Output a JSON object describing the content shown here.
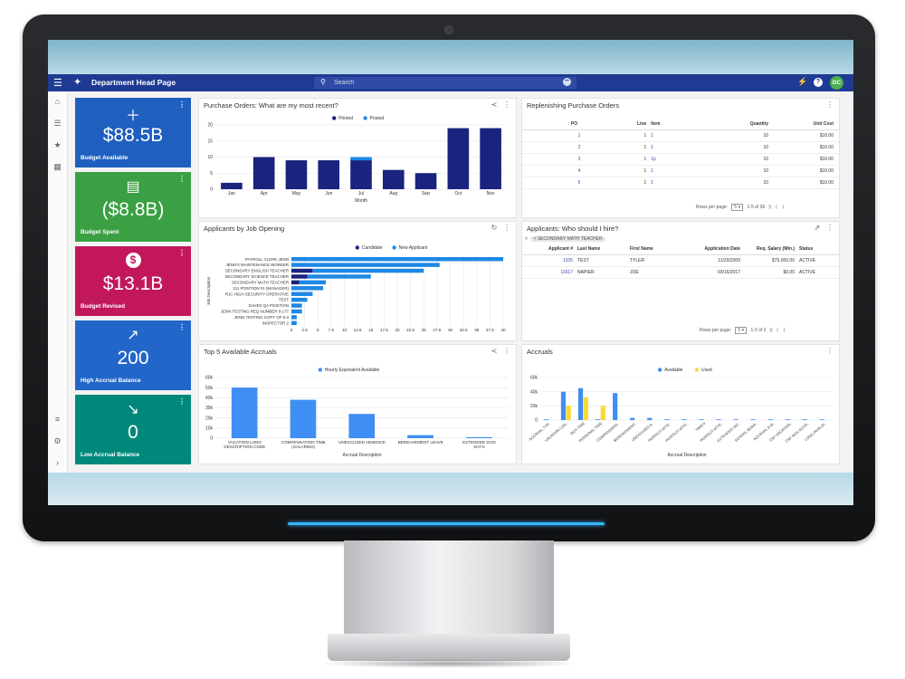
{
  "app": {
    "title": "Department Head Page",
    "search_placeholder": "Search",
    "user_initials": "DC"
  },
  "icons": {
    "menu": "hamburger-icon",
    "logo": "network-logo-icon",
    "search": "search-icon",
    "bolt": "bolt-icon",
    "help": "help-icon"
  },
  "sidenav": [
    "home-icon",
    "list-icon",
    "star-icon",
    "dashboard-icon",
    "filter-settings-icon",
    "gear-icon",
    "chevron-right-icon"
  ],
  "kpis": [
    {
      "value": "$88.5B",
      "label": "Budget Available",
      "color": "#1f5fbf",
      "icon": "plus-icon"
    },
    {
      "value": "($8.8B)",
      "label": "Budget Spent",
      "color": "#3aa043",
      "icon": "badge-card-icon"
    },
    {
      "value": "$13.1B",
      "label": "Budget Revised",
      "color": "#c2185b",
      "icon": "dollar-circle-icon"
    },
    {
      "value": "200",
      "label": "High Accrual Balance",
      "color": "#2166c8",
      "icon": "trending-up-icon"
    },
    {
      "value": "0",
      "label": "Low Accrual Balance",
      "color": "#00897b",
      "icon": "trending-down-icon"
    }
  ],
  "widgets": {
    "purchase_orders": {
      "title": "Purchase Orders: What are my most recent?"
    },
    "replenishing": {
      "title": "Replenishing Purchase Orders",
      "columns": [
        "PO",
        "Line",
        "Item",
        "Quantity",
        "Unit Cost"
      ],
      "rows": [
        [
          "1",
          "1",
          "1",
          "10",
          "$10.00"
        ],
        [
          "2",
          "1",
          "1",
          "10",
          "$10.00"
        ],
        [
          "3",
          "1",
          "1p",
          "10",
          "$10.00"
        ],
        [
          "4",
          "1",
          "1",
          "10",
          "$10.00"
        ],
        [
          "5",
          "1",
          "1",
          "10",
          "$10.00"
        ]
      ],
      "rows_per_page_label": "Rows per page:",
      "rows_per_page": "5",
      "range": "1-5 of 36"
    },
    "applicants_job": {
      "title": "Applicants by Job Opening"
    },
    "applicants_hire": {
      "title": "Applicants: Who should I hire?",
      "filter_chip": "SECONDARY MATH TEACHER",
      "columns": [
        "Applicant #",
        "Last Name",
        "First Name",
        "Application Date",
        "Req. Salary (Min.)",
        "Status"
      ],
      "rows": [
        [
          "1105",
          "TEST",
          "TYLER",
          "11/20/2009",
          "$75,000.00",
          "ACTIVE"
        ],
        [
          "11617",
          "NAPIER",
          "JOE",
          "03/16/2017",
          "$0.00",
          "ACTIVE"
        ]
      ],
      "rows_per_page_label": "Rows per page:",
      "rows_per_page": "5",
      "range": "1-2 of 2"
    },
    "top_accruals": {
      "title": "Top 5 Available Accruals"
    },
    "accruals": {
      "title": "Accruals"
    }
  },
  "chart_data": [
    {
      "type": "bar",
      "id": "po",
      "categories": [
        "Jan",
        "Apr",
        "May",
        "Jun",
        "Jul",
        "Aug",
        "Sep",
        "Oct",
        "Nov"
      ],
      "series": [
        {
          "name": "Printed",
          "color": "#1a237e",
          "values": [
            2,
            10,
            9,
            9,
            9,
            6,
            5,
            19,
            19
          ]
        },
        {
          "name": "Posted",
          "color": "#1e88e5",
          "values": [
            0,
            0,
            0,
            0,
            1,
            0,
            0,
            0,
            0
          ]
        }
      ],
      "xlabel": "Month",
      "ylabel": "",
      "ylim": [
        0,
        20
      ],
      "yticks": [
        0,
        5,
        10,
        15,
        20
      ],
      "legend": "top"
    },
    {
      "type": "bar",
      "id": "jobs",
      "orientation": "horizontal",
      "categories": [
        "PAYROLL CLERK JENN",
        "JENN'S MAINTENANCE WORKER",
        "SECONDARY ENGLISH TEACHER",
        "SECONDARY SCIENCE TEACHER",
        "SECONDARY MATH TEACHER",
        "211 POSITION #1 (MANAGER)",
        "RJC HIGH SECURITY OPERATIVE",
        "TEST",
        "DAVES QA POSITION",
        "JENN TESTING REQ NUMBER 9-177",
        "JENN TESTING COPY OF 6-3",
        "INSPECTOR 2"
      ],
      "series": [
        {
          "name": "Candidate",
          "color": "#1a237e",
          "values": [
            0,
            0,
            4,
            3,
            1.5,
            0,
            0,
            0,
            0,
            0,
            0,
            0
          ]
        },
        {
          "name": "New Applicant",
          "color": "#1e88e5",
          "values": [
            40,
            28,
            21,
            12,
            5,
            6,
            4,
            3,
            2,
            2,
            1,
            1
          ]
        }
      ],
      "xlabel": "",
      "ylabel": "Job Description",
      "xlim": [
        0,
        40
      ],
      "xticks": [
        0,
        2.5,
        5,
        7.5,
        10,
        12.5,
        15,
        17.5,
        20,
        22.5,
        25,
        27.5,
        30,
        32.5,
        35,
        37.5,
        40
      ],
      "legend": "top"
    },
    {
      "type": "bar",
      "id": "top5",
      "categories": [
        "VACATION LONG DESCRIPTION CODE",
        "COMPENSATION TIME (SALARIED)",
        "UNEXCUSED ABSENCE",
        "BEREAVEMENT LEAVE",
        "EXTENDED SICK DAYS"
      ],
      "series": [
        {
          "name": "Hourly Equivalent Available",
          "color": "#3f8ef3",
          "values": [
            50000,
            38000,
            24000,
            3000,
            1000
          ]
        }
      ],
      "xlabel": "Accrual Description",
      "ylabel": "",
      "ylim": [
        0,
        60000
      ],
      "yticks": [
        "0",
        "10k",
        "20k",
        "30k",
        "40k",
        "50k",
        "60k"
      ],
      "legend": "top"
    },
    {
      "type": "bar",
      "id": "accruals",
      "categories": [
        "ACCRUAL TYP..",
        "VACATION LON..",
        "SICK TIME",
        "PERSONAL TIME",
        "COMPENSATIO..",
        "BEREAVEMENT..",
        "UNEXCUSED A..",
        "PERFECT ATTE..",
        "PERFECT ATTE..",
        "TARDY",
        "PERFECT ATTE..",
        "EXTENDED SIC..",
        "SCHOOL BOAR..",
        "ACCRUAL A W..",
        "CSF VACATION..",
        "CSF SICK ACCR..",
        "LONG INVALID.."
      ],
      "series": [
        {
          "name": "Available",
          "color": "#3f8ef3",
          "values": [
            1000,
            40000,
            45000,
            1000,
            38000,
            3000,
            3000,
            1000,
            1000,
            1000,
            1000,
            1000,
            1000,
            1000,
            1000,
            1000,
            1000
          ]
        },
        {
          "name": "Used",
          "color": "#fdd835",
          "values": [
            0,
            20000,
            32000,
            20000,
            0,
            0,
            0,
            0,
            0,
            0,
            0,
            0,
            0,
            0,
            0,
            0,
            0
          ]
        }
      ],
      "xlabel": "Accrual Description",
      "ylabel": "",
      "ylim": [
        0,
        60000
      ],
      "yticks": [
        "0",
        "20k",
        "40k",
        "60k"
      ],
      "legend": "top"
    }
  ]
}
